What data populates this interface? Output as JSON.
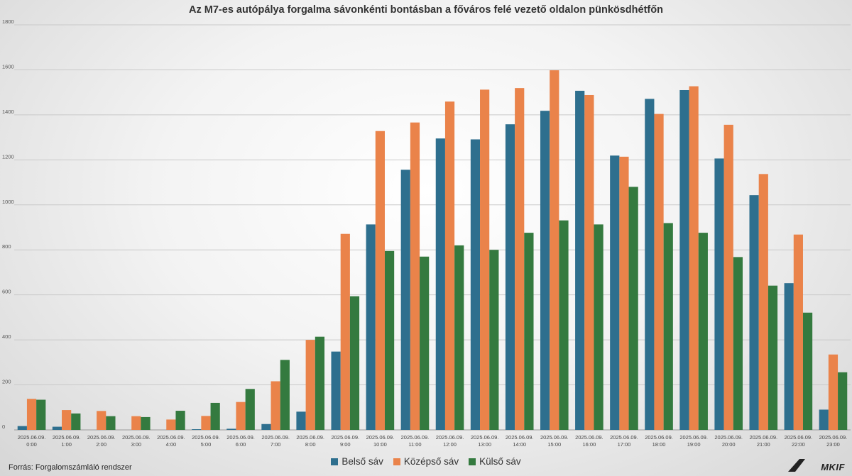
{
  "chart_data": {
    "type": "bar",
    "title": "Az M7-es autópálya forgalma sávonkénti bontásban a főváros felé vezető oldalon pünkösdhétfőn",
    "source": "Forrás: Forgalomszámláló rendszer",
    "logo": "MKIF",
    "ylim": [
      0,
      1800
    ],
    "yticks": [
      0,
      200,
      400,
      600,
      800,
      1000,
      1200,
      1400,
      1600,
      1800
    ],
    "grid": true,
    "legend_position": "bottom",
    "categories": [
      [
        "2025.06.09.",
        "0:00"
      ],
      [
        "2025.06.09.",
        "1:00"
      ],
      [
        "2025.06.09.",
        "2:00"
      ],
      [
        "2025.06.09.",
        "3:00"
      ],
      [
        "2025.06.09.",
        "4:00"
      ],
      [
        "2025.06.09.",
        "5:00"
      ],
      [
        "2025.06.09.",
        "6:00"
      ],
      [
        "2025.06.09.",
        "7:00"
      ],
      [
        "2025.06.09.",
        "8:00"
      ],
      [
        "2025.06.09.",
        "9:00"
      ],
      [
        "2025.06.09.",
        "10:00"
      ],
      [
        "2025.06.09.",
        "11:00"
      ],
      [
        "2025.06.09.",
        "12:00"
      ],
      [
        "2025.06.09.",
        "13:00"
      ],
      [
        "2025.06.09.",
        "14:00"
      ],
      [
        "2025.06.09.",
        "15:00"
      ],
      [
        "2025.06.09.",
        "16:00"
      ],
      [
        "2025.06.09.",
        "17:00"
      ],
      [
        "2025.06.09.",
        "18:00"
      ],
      [
        "2025.06.09.",
        "19:00"
      ],
      [
        "2025.06.09.",
        "20:00"
      ],
      [
        "2025.06.09.",
        "21:00"
      ],
      [
        "2025.06.09.",
        "22:00"
      ],
      [
        "2025.06.09.",
        "23:00"
      ]
    ],
    "series": [
      {
        "name": "Belső sáv",
        "color": "#2e6f8e",
        "values": [
          17,
          14,
          0,
          0,
          0,
          3,
          5,
          26,
          81,
          348,
          913,
          1156,
          1295,
          1291,
          1358,
          1418,
          1507,
          1219,
          1471,
          1510,
          1206,
          1043,
          652,
          90
        ]
      },
      {
        "name": "Középső sáv",
        "color": "#ea834a",
        "values": [
          138,
          88,
          84,
          61,
          46,
          62,
          124,
          216,
          400,
          871,
          1328,
          1366,
          1459,
          1512,
          1519,
          1598,
          1488,
          1214,
          1404,
          1527,
          1356,
          1137,
          868,
          335
        ]
      },
      {
        "name": "Külső sáv",
        "color": "#347a3f",
        "values": [
          134,
          73,
          61,
          57,
          85,
          120,
          182,
          311,
          414,
          594,
          795,
          770,
          820,
          800,
          876,
          931,
          913,
          1080,
          919,
          876,
          768,
          641,
          521,
          256
        ]
      }
    ]
  }
}
